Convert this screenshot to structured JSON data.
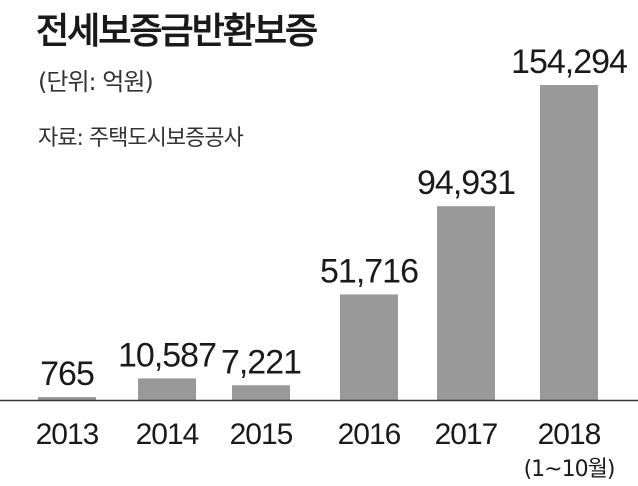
{
  "chart_data": {
    "type": "bar",
    "title": "전세보증금반환보증",
    "unit": "(단위: 억원)",
    "source": "자료: 주택도시보증공사",
    "categories": [
      "2013",
      "2014",
      "2015",
      "2016",
      "2017",
      "2018"
    ],
    "values": [
      765,
      10587,
      7221,
      51716,
      94931,
      154294
    ],
    "value_labels": [
      "765",
      "10,587",
      "7,221",
      "51,716",
      "94,931",
      "154,294"
    ],
    "category_notes": [
      "",
      "",
      "",
      "",
      "",
      "(1~10월)"
    ],
    "ylim": [
      0,
      160000
    ],
    "grid": false,
    "legend": "none",
    "bar_color": "#999999",
    "axis_color": "#333333"
  }
}
